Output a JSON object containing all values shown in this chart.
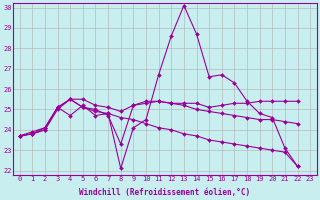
{
  "background_color": "#c8eef0",
  "grid_color": "#b0b0b0",
  "line_color": "#990099",
  "xlabel": "Windchill (Refroidissement éolien,°C)",
  "xlim": [
    -0.5,
    23.5
  ],
  "ylim": [
    21.8,
    30.2
  ],
  "yticks": [
    22,
    23,
    24,
    25,
    26,
    27,
    28,
    29,
    30
  ],
  "xticks": [
    0,
    1,
    2,
    3,
    4,
    5,
    6,
    7,
    8,
    9,
    10,
    11,
    12,
    13,
    14,
    15,
    16,
    17,
    18,
    19,
    20,
    21,
    22,
    23
  ],
  "series1_x": [
    0,
    1,
    2,
    3,
    4,
    5,
    6,
    7,
    8,
    9,
    10,
    11,
    12,
    13,
    14,
    15,
    16,
    17,
    18,
    19,
    20,
    21,
    22
  ],
  "series1_y": [
    23.7,
    23.8,
    24.0,
    25.1,
    24.7,
    25.2,
    24.7,
    24.8,
    22.1,
    24.1,
    24.5,
    26.7,
    28.6,
    30.1,
    28.7,
    26.6,
    26.7,
    26.3,
    25.4,
    24.8,
    24.6,
    23.1,
    22.2
  ],
  "series2_x": [
    0,
    1,
    2,
    3,
    4,
    5,
    6,
    7,
    8,
    9,
    10,
    11,
    12,
    13,
    14,
    15,
    16,
    17,
    18,
    19,
    20,
    21,
    22
  ],
  "series2_y": [
    23.7,
    23.8,
    24.1,
    25.1,
    25.5,
    25.1,
    25.0,
    24.7,
    23.3,
    25.2,
    25.3,
    25.4,
    25.3,
    25.3,
    25.3,
    25.1,
    25.2,
    25.3,
    25.3,
    25.4,
    25.4,
    25.4,
    25.4
  ],
  "series3_x": [
    0,
    1,
    2,
    3,
    4,
    5,
    6,
    7,
    8,
    9,
    10,
    11,
    12,
    13,
    14,
    15,
    16,
    17,
    18,
    19,
    20,
    21,
    22
  ],
  "series3_y": [
    23.7,
    23.8,
    24.0,
    25.0,
    25.5,
    25.5,
    25.2,
    25.1,
    24.9,
    25.2,
    25.4,
    25.4,
    25.3,
    25.2,
    25.0,
    24.9,
    24.8,
    24.7,
    24.6,
    24.5,
    24.5,
    24.4,
    24.3
  ],
  "series4_x": [
    0,
    1,
    2,
    3,
    4,
    5,
    6,
    7,
    8,
    9,
    10,
    11,
    12,
    13,
    14,
    15,
    16,
    17,
    18,
    19,
    20,
    21,
    22
  ],
  "series4_y": [
    23.7,
    23.9,
    24.1,
    25.1,
    25.5,
    25.1,
    24.9,
    24.8,
    24.6,
    24.5,
    24.3,
    24.1,
    24.0,
    23.8,
    23.7,
    23.5,
    23.4,
    23.3,
    23.2,
    23.1,
    23.0,
    22.9,
    22.2
  ],
  "tick_fontsize": 5,
  "label_fontsize": 5.5
}
